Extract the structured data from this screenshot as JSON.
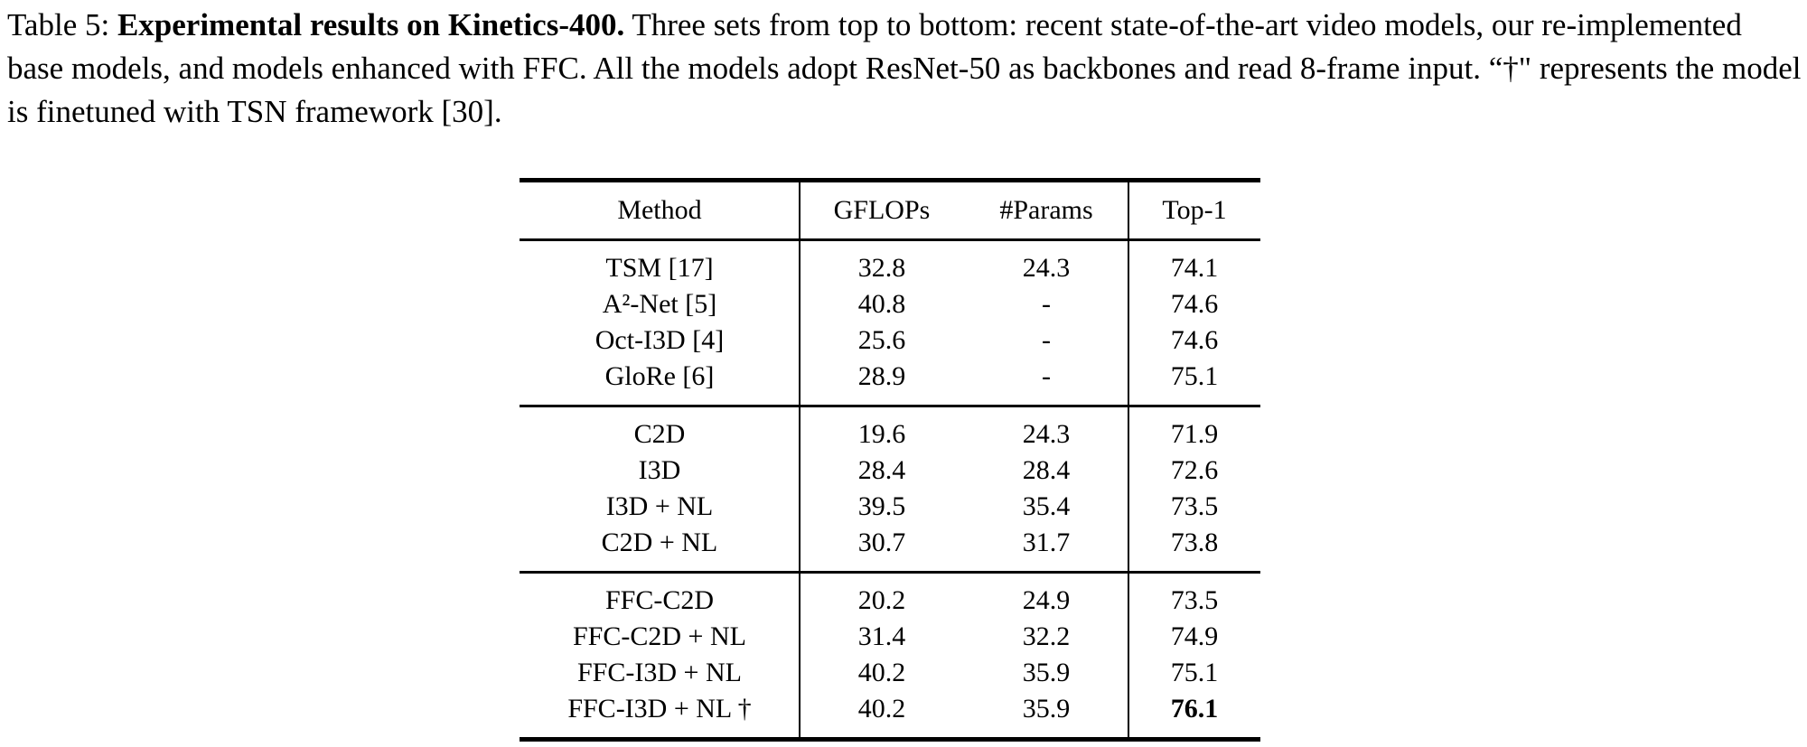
{
  "caption": {
    "prefix": "Table 5: ",
    "title": "Experimental results on Kinetics-400.",
    "body": " Three sets from top to bottom: recent state-of-the-art video models, our re-implemented base models, and models enhanced with FFC. All the models adopt ResNet-50 as backbones and read 8-frame input. “†\" represents the model is finetuned with TSN framework [30]."
  },
  "table": {
    "headers": {
      "method": "Method",
      "gflops": "GFLOPs",
      "params": "#Params",
      "top1": "Top-1"
    },
    "sections": [
      {
        "rows": [
          {
            "method": "TSM [17]",
            "gflops": "32.8",
            "params": "24.3",
            "top1": "74.1"
          },
          {
            "method": "A²-Net [5]",
            "gflops": "40.8",
            "params": "-",
            "top1": "74.6"
          },
          {
            "method": "Oct-I3D [4]",
            "gflops": "25.6",
            "params": "-",
            "top1": "74.6"
          },
          {
            "method": "GloRe [6]",
            "gflops": "28.9",
            "params": "-",
            "top1": "75.1"
          }
        ]
      },
      {
        "rows": [
          {
            "method": "C2D",
            "gflops": "19.6",
            "params": "24.3",
            "top1": "71.9"
          },
          {
            "method": "I3D",
            "gflops": "28.4",
            "params": "28.4",
            "top1": "72.6"
          },
          {
            "method": "I3D + NL",
            "gflops": "39.5",
            "params": "35.4",
            "top1": "73.5"
          },
          {
            "method": "C2D + NL",
            "gflops": "30.7",
            "params": "31.7",
            "top1": "73.8"
          }
        ]
      },
      {
        "rows": [
          {
            "method": "FFC-C2D",
            "gflops": "20.2",
            "params": "24.9",
            "top1": "73.5"
          },
          {
            "method": "FFC-C2D + NL",
            "gflops": "31.4",
            "params": "32.2",
            "top1": "74.9"
          },
          {
            "method": "FFC-I3D + NL",
            "gflops": "40.2",
            "params": "35.9",
            "top1": "75.1"
          },
          {
            "method": "FFC-I3D + NL †",
            "gflops": "40.2",
            "params": "35.9",
            "top1": "76.1"
          }
        ]
      }
    ]
  }
}
